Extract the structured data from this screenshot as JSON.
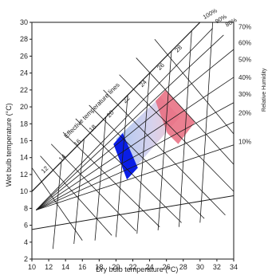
{
  "axes": {
    "x_label": "Dry bulb temperature (°C)",
    "y_label": "Wet bulb temperature (°C)",
    "x_range": [
      10,
      34
    ],
    "y_range": [
      2,
      30
    ],
    "x_ticks": [
      "10",
      "12",
      "14",
      "16",
      "18",
      "20",
      "22",
      "24",
      "26",
      "28",
      "30",
      "32",
      "34"
    ],
    "y_ticks": [
      "2",
      "4",
      "6",
      "8",
      "10",
      "12",
      "14",
      "16",
      "18",
      "20",
      "22",
      "24",
      "26",
      "28",
      "30"
    ]
  },
  "effective_temperature": {
    "caption": "Effective temperature lines",
    "labels": [
      "12",
      "14",
      "16",
      "18",
      "20",
      "22",
      "24",
      "26",
      "28"
    ]
  },
  "relative_humidity": {
    "caption": "Relative Humidity",
    "top_labels": [
      "100%",
      "90%",
      "80%"
    ],
    "side_labels": [
      "70%",
      "60%",
      "50%",
      "40%",
      "30%",
      "20%",
      "10%"
    ]
  },
  "zones": {
    "winter_color": "#0a1ee6",
    "gradient_start": "#a9c4f0",
    "gradient_end": "#f4c4cc",
    "summer_color": "#e86a7e"
  }
}
